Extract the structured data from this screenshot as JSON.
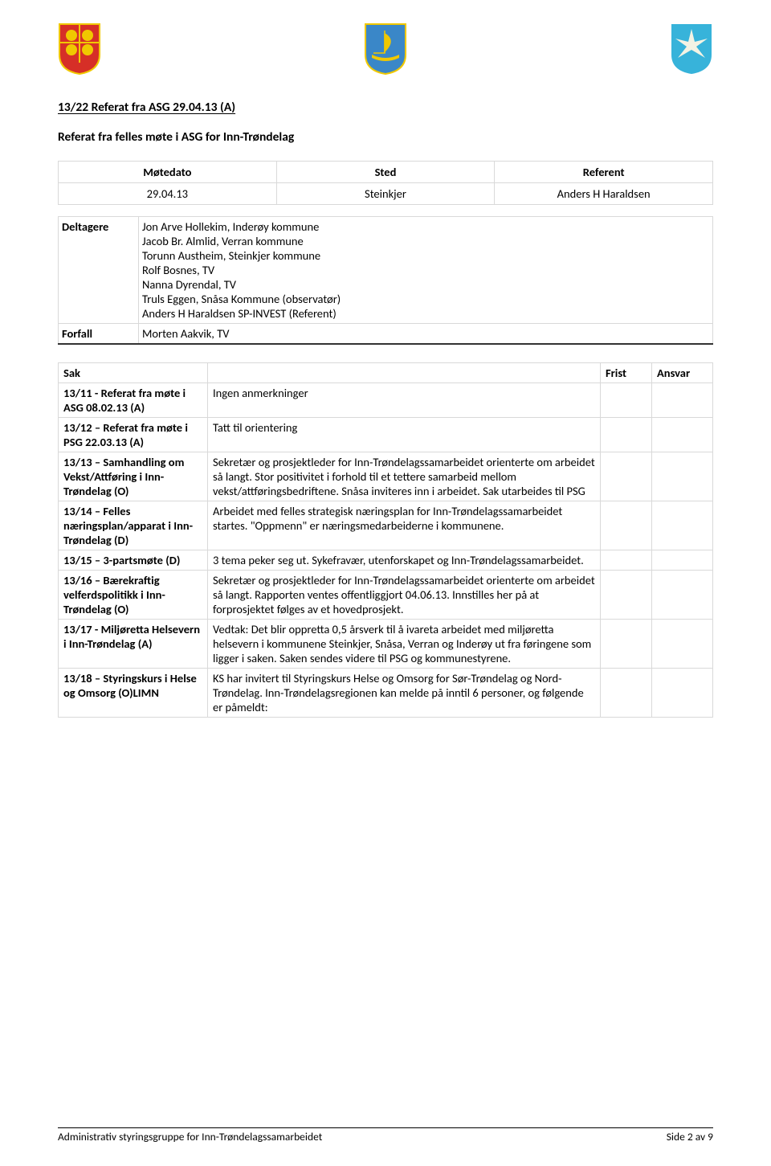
{
  "logos": {
    "left": {
      "shield_fill": "#d62f27",
      "shield_stroke": "#f0c800",
      "circle_fill": "#f0c800"
    },
    "center": {
      "shield_fill": "#3a87c8",
      "shield_stroke": "#f0c800",
      "ship_fill": "#f0c800"
    },
    "right": {
      "shield_fill": "#37b3da",
      "star_fill": "#f3f3e4"
    }
  },
  "heading1": "13/22   Referat fra ASG 29.04.13 (A)",
  "heading2": "Referat fra felles møte i ASG for Inn-Trøndelag",
  "meeting": {
    "headers": {
      "date": "Møtedato",
      "place": "Sted",
      "referent": "Referent"
    },
    "row": {
      "date": "29.04.13",
      "place": "Steinkjer",
      "referent": "Anders H Haraldsen"
    }
  },
  "participants": {
    "label_deltagere": "Deltagere",
    "deltagere": "Jon Arve Hollekim, Inderøy kommune\nJacob Br. Almlid, Verran kommune\nTorunn Austheim, Steinkjer kommune\nRolf Bosnes, TV\nNanna Dyrendal, TV\nTruls Eggen, Snåsa Kommune (observatør)\nAnders H Haraldsen SP-INVEST (Referent)",
    "label_forfall": "Forfall",
    "forfall": "Morten Aakvik, TV"
  },
  "sak_headers": {
    "sak": "Sak",
    "frist": "Frist",
    "ansvar": "Ansvar"
  },
  "rows": [
    {
      "sak": "13/11 - Referat fra møte i ASG 08.02.13 (A)",
      "desc": "Ingen anmerkninger"
    },
    {
      "sak": "13/12 – Referat fra møte i PSG 22.03.13 (A)",
      "desc": "Tatt til orientering"
    },
    {
      "sak": "13/13 – Samhandling om Vekst/Attføring i Inn-Trøndelag (O)",
      "desc": "Sekretær og prosjektleder for Inn-Trøndelagssamarbeidet orienterte om arbeidet så langt. Stor positivitet i forhold til et tettere samarbeid mellom vekst/attføringsbedriftene. Snåsa inviteres inn i arbeidet. Sak utarbeides til PSG"
    },
    {
      "sak": "13/14 – Felles næringsplan/apparat i Inn-Trøndelag (D)",
      "desc": "Arbeidet med felles strategisk næringsplan for Inn-Trøndelagssamarbeidet startes. \"Oppmenn\" er næringsmedarbeiderne i kommunene."
    },
    {
      "sak": "13/15 – 3-partsmøte (D)",
      "desc": "3 tema peker seg ut. Sykefravær, utenforskapet og Inn-Trøndelagssamarbeidet."
    },
    {
      "sak": "13/16 – Bærekraftig velferdspolitikk i Inn-Trøndelag  (O)",
      "desc": "Sekretær og prosjektleder for Inn-Trøndelagssamarbeidet orienterte om arbeidet så langt. Rapporten ventes offentliggjort 04.06.13. Innstilles her på at forprosjektet følges av et hovedprosjekt."
    },
    {
      "sak": "13/17 - Miljøretta Helsevern i Inn-Trøndelag (A)",
      "desc": "Vedtak: Det blir oppretta 0,5 årsverk til å ivareta arbeidet med miljøretta helsevern i kommunene Steinkjer, Snåsa, Verran og Inderøy ut fra føringene som ligger i saken. Saken sendes videre til PSG og kommunestyrene."
    },
    {
      "sak": "13/18 – Styringskurs i Helse og Omsorg (O)LIMN",
      "desc": "KS har invitert til Styringskurs Helse og Omsorg for Sør-Trøndelag og Nord-Trøndelag. Inn-Trøndelagsregionen kan melde på inntil 6 personer, og følgende er påmeldt:"
    }
  ],
  "footer": {
    "left": "Administrativ styringsgruppe for Inn-Trøndelagssamarbeidet",
    "right": "Side 2 av 9"
  }
}
